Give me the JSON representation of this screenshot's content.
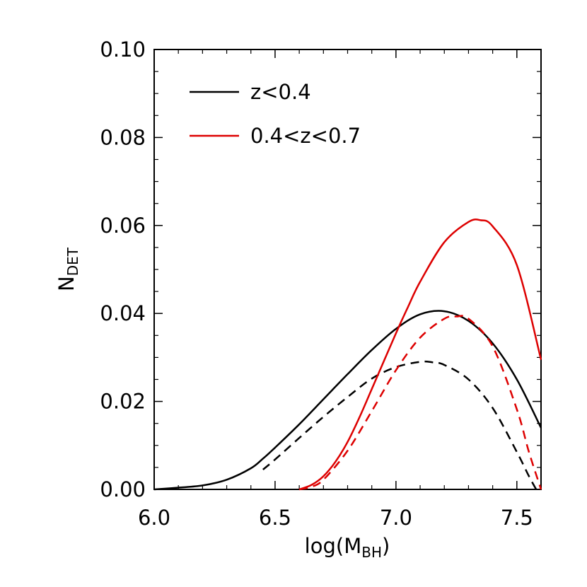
{
  "chart_data": {
    "type": "line",
    "title": "",
    "xlabel": {
      "main": "log(M",
      "sub": "BH",
      "close": ")"
    },
    "ylabel": {
      "main": "N",
      "sub": "DET"
    },
    "xlim": [
      6.0,
      7.6
    ],
    "ylim": [
      0.0,
      0.1
    ],
    "x_ticks": [
      "6.0",
      "6.5",
      "7.0",
      "7.5"
    ],
    "x_tick_values": [
      6.0,
      6.5,
      7.0,
      7.5
    ],
    "y_ticks": [
      "0.00",
      "0.02",
      "0.04",
      "0.06",
      "0.08",
      "0.10"
    ],
    "y_tick_values": [
      0.0,
      0.02,
      0.04,
      0.06,
      0.08,
      0.1
    ],
    "legend": {
      "placement": "top-left",
      "entries": [
        {
          "label": "z<0.4",
          "color": "#000000"
        },
        {
          "label": "0.4<z<0.7",
          "color": "#dd0000"
        }
      ]
    },
    "series": [
      {
        "color": "#000000",
        "dash": "solid",
        "x": [
          6.0,
          6.1,
          6.2,
          6.3,
          6.4,
          6.45,
          6.5,
          6.6,
          6.7,
          6.8,
          6.9,
          7.0,
          7.1,
          7.2,
          7.3,
          7.4,
          7.5,
          7.6
        ],
        "y": [
          0.0,
          0.0004,
          0.0009,
          0.0022,
          0.0048,
          0.007,
          0.0095,
          0.0148,
          0.0205,
          0.0262,
          0.0317,
          0.0365,
          0.0398,
          0.0405,
          0.0383,
          0.0332,
          0.025,
          0.014
        ]
      },
      {
        "color": "#000000",
        "dash": "dashed",
        "x": [
          6.45,
          6.5,
          6.6,
          6.7,
          6.8,
          6.9,
          7.0,
          7.1,
          7.15,
          7.2,
          7.3,
          7.4,
          7.5,
          7.55,
          7.58
        ],
        "y": [
          0.0045,
          0.0068,
          0.0117,
          0.0165,
          0.021,
          0.0252,
          0.0278,
          0.029,
          0.0289,
          0.0283,
          0.025,
          0.0185,
          0.0085,
          0.003,
          0.0
        ]
      },
      {
        "color": "#dd0000",
        "dash": "solid",
        "x": [
          6.6,
          6.65,
          6.7,
          6.75,
          6.8,
          6.85,
          6.9,
          7.0,
          7.05,
          7.1,
          7.2,
          7.3,
          7.35,
          7.4,
          7.5,
          7.6
        ],
        "y": [
          0.0,
          0.001,
          0.003,
          0.0063,
          0.0108,
          0.0165,
          0.0228,
          0.0355,
          0.0415,
          0.0472,
          0.0562,
          0.0608,
          0.0612,
          0.0598,
          0.051,
          0.0295
        ]
      },
      {
        "color": "#dd0000",
        "dash": "dashed",
        "x": [
          6.6,
          6.65,
          6.7,
          6.8,
          6.9,
          7.0,
          7.1,
          7.2,
          7.25,
          7.3,
          7.4,
          7.5,
          7.55,
          7.6
        ],
        "y": [
          0.0,
          0.0006,
          0.0022,
          0.0088,
          0.0178,
          0.0271,
          0.0345,
          0.0388,
          0.0393,
          0.0388,
          0.0325,
          0.0182,
          0.0085,
          0.0
        ]
      }
    ]
  }
}
